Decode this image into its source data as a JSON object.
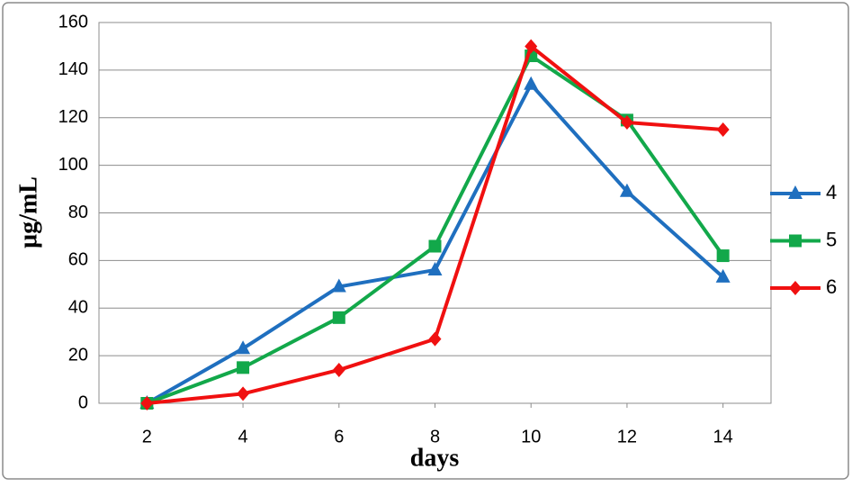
{
  "chart_data": {
    "type": "line",
    "x_label": "days",
    "y_label": "µg/mL",
    "x": [
      2,
      4,
      6,
      8,
      10,
      12,
      14
    ],
    "xlim": [
      1,
      15
    ],
    "xticks": [
      2,
      4,
      6,
      8,
      10,
      12,
      14
    ],
    "ylim": [
      0,
      160
    ],
    "yticks": [
      0,
      20,
      40,
      60,
      80,
      100,
      120,
      140,
      160
    ],
    "grid": true,
    "legend": "right",
    "series": [
      {
        "name": "4",
        "color": "#1f6fbf",
        "marker": "triangle",
        "values": [
          0,
          23,
          49,
          56,
          134,
          89,
          53
        ]
      },
      {
        "name": "5",
        "color": "#12a84a",
        "marker": "square",
        "values": [
          0,
          15,
          36,
          66,
          146,
          119,
          62
        ]
      },
      {
        "name": "6",
        "color": "#f01010",
        "marker": "diamond",
        "values": [
          0,
          4,
          14,
          27,
          150,
          118,
          115
        ]
      }
    ]
  }
}
